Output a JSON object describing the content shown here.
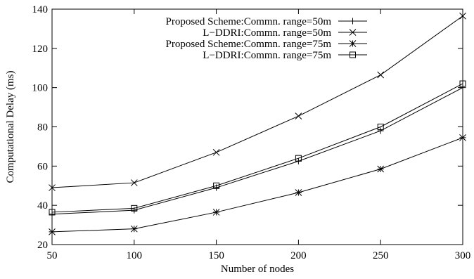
{
  "chart_data": {
    "type": "line",
    "title": "",
    "xlabel": "Number of nodes",
    "ylabel": "Computational Delay (ms)",
    "x": [
      50,
      100,
      150,
      200,
      250,
      300
    ],
    "xlim": [
      50,
      300
    ],
    "ylim": [
      20,
      140
    ],
    "xticks": [
      50,
      100,
      150,
      200,
      250,
      300
    ],
    "yticks": [
      20,
      40,
      60,
      80,
      100,
      120,
      140
    ],
    "grid": false,
    "legend_position": "top-left",
    "series": [
      {
        "name": "Proposed Scheme:Commn. range=50m",
        "marker": "plus",
        "values": [
          35.5,
          37.5,
          49,
          62.5,
          78,
          100
        ]
      },
      {
        "name": "L−DDRI:Commn. range=50m",
        "marker": "cross",
        "values": [
          49,
          51.5,
          67,
          85.5,
          106.5,
          136.5
        ]
      },
      {
        "name": "Proposed Scheme:Commn. range=75m",
        "marker": "star",
        "values": [
          26.5,
          28,
          36.5,
          46.5,
          58.5,
          74.5
        ]
      },
      {
        "name": "L−DDRI:Commn. range=75m",
        "marker": "square",
        "values": [
          36.5,
          38.5,
          50,
          64,
          80,
          102
        ]
      }
    ]
  }
}
